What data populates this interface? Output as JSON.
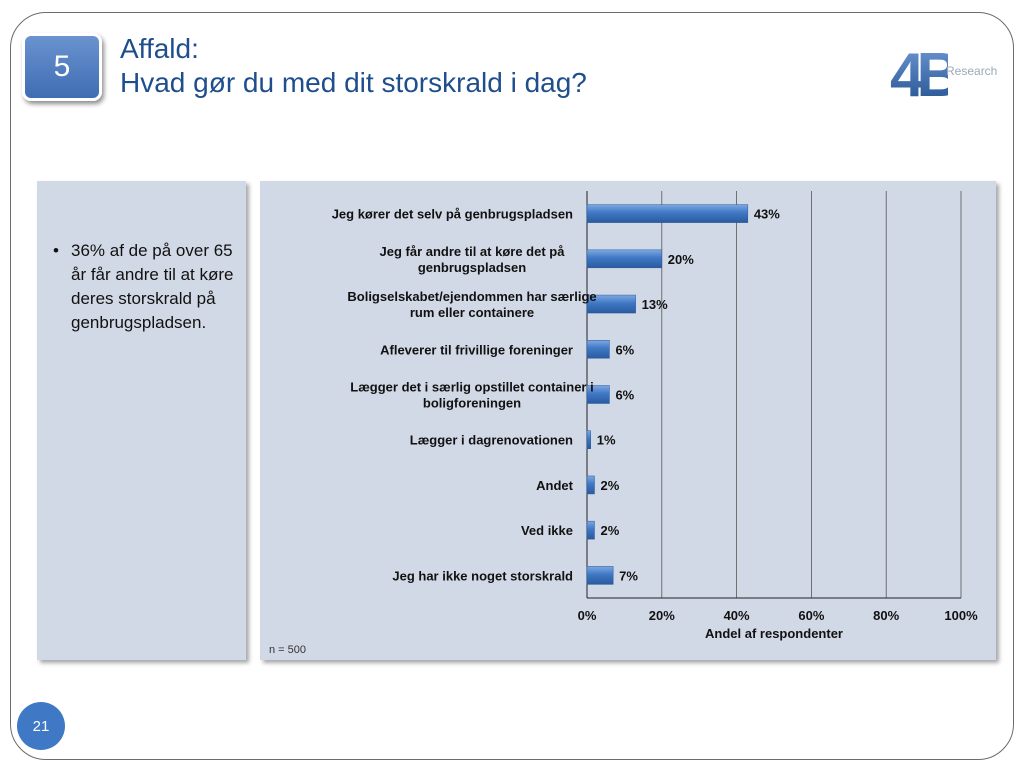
{
  "slide": {
    "badge_number": "5",
    "title_line1": "Affald:",
    "title_line2": "Hvad gør du med dit storskrald i dag?",
    "logo_text": "4B",
    "logo_subtext": "Research",
    "page_number": "21"
  },
  "left_panel": {
    "bullets": [
      "36% af de på over 65 år får andre til at køre deres storskrald på genbrugspladsen."
    ]
  },
  "chart_data": {
    "type": "bar",
    "orientation": "horizontal",
    "categories": [
      [
        "Jeg kører det selv på genbrugspladsen"
      ],
      [
        "Jeg får andre til at køre det på",
        "genbrugspladsen"
      ],
      [
        "Boligselskabet/ejendommen har særlige",
        "rum eller containere"
      ],
      [
        "Afleverer til frivillige foreninger"
      ],
      [
        "Lægger det i særlig opstillet container i",
        "boligforeningen"
      ],
      [
        "Lægger i dagrenovationen"
      ],
      [
        "Andet"
      ],
      [
        "Ved ikke"
      ],
      [
        "Jeg har ikke noget storskrald"
      ]
    ],
    "values": [
      43,
      20,
      13,
      6,
      6,
      1,
      2,
      2,
      7
    ],
    "value_labels": [
      "43%",
      "20%",
      "13%",
      "6%",
      "6%",
      "1%",
      "2%",
      "2%",
      "7%"
    ],
    "xlim": [
      0,
      100
    ],
    "xticks": [
      "0%",
      "20%",
      "40%",
      "60%",
      "80%",
      "100%"
    ],
    "xlabel": "Andel af respondenter",
    "bar_color": "#3f78c5",
    "grid": true,
    "note": "n = 500"
  }
}
